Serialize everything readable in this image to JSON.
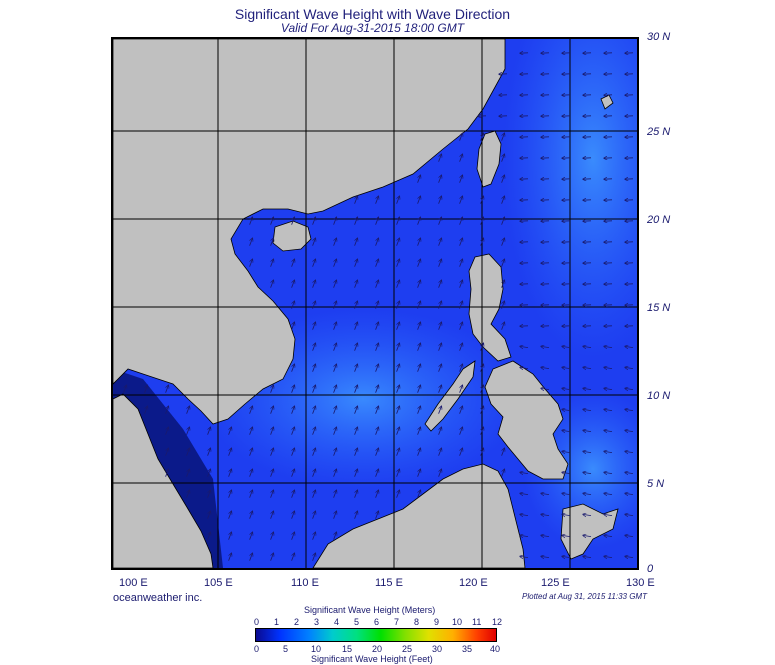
{
  "title": "Significant Wave Height with Wave Direction",
  "subtitle": "Valid For Aug-31-2015 18:00 GMT",
  "lat_labels": [
    "30 N",
    "25 N",
    "20 N",
    "15 N",
    "10 N",
    "5 N",
    "0"
  ],
  "lon_labels": [
    "100 E",
    "105 E",
    "110 E",
    "115 E",
    "120 E",
    "125 E",
    "130 E"
  ],
  "credit": "oceanweather inc.",
  "plotted": "Plotted at Aug 31, 2015 11:33 GMT",
  "colorbar": {
    "title_meters": "Significant Wave Height (Meters)",
    "title_feet": "Significant Wave Height (Feet)",
    "meter_ticks": [
      "0",
      "1",
      "2",
      "3",
      "4",
      "5",
      "6",
      "7",
      "8",
      "9",
      "10",
      "11",
      "12"
    ],
    "feet_ticks": [
      "0",
      "5",
      "10",
      "15",
      "20",
      "25",
      "30",
      "35",
      "40"
    ]
  },
  "colors": {
    "land": "#c0c0c0",
    "ocean_low": "#1e3ef0",
    "ocean_mid": "#2b6bff",
    "ocean_high": "#3a8cff",
    "arrow": "#1a1a6e",
    "text": "#1a1a6e"
  }
}
